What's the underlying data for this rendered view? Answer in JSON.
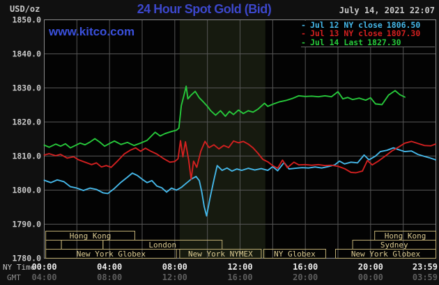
{
  "header": {
    "units_label": "USD/oz",
    "title": "24 Hour Spot Gold (Bid)",
    "datetime": "July 14, 2021 22:07",
    "watermark": "www.kitco.com"
  },
  "colors": {
    "frame_bg": "#101010",
    "plot_bg": "#030303",
    "band": "#161a0f",
    "grid": "#565656",
    "border": "#8c8c8c",
    "session_border": "#bfae74",
    "session_text": "#ddcc92",
    "title": "#3c47cb",
    "watermark": "#3a50dc",
    "datetime": "#c8c8c8",
    "y_tick_text": "#c8c8c8",
    "ny_tick_text": "#ededed",
    "gmt_tick_text": "#5e5e5e",
    "series_jul12": "#45b7e8",
    "series_jul13": "#d22020",
    "series_jul14": "#27c93b"
  },
  "legend": {
    "items": [
      {
        "marker": "-",
        "label": "Jul 12 NY close",
        "value": "1806.50",
        "color": "#45b7e8"
      },
      {
        "marker": "-",
        "label": "Jul 13 NY close",
        "value": "1807.30",
        "color": "#d22020"
      },
      {
        "marker": "-",
        "label": "Jul 14 Last",
        "value": "1827.30",
        "color": "#27c93b"
      }
    ]
  },
  "axes": {
    "ny_label": "NY Time",
    "gmt_label": "GMT",
    "y_ticks": [
      {
        "value": 1850,
        "label": "1850.0"
      },
      {
        "value": 1840,
        "label": "1840.0"
      },
      {
        "value": 1830,
        "label": "1830.0"
      },
      {
        "value": 1820,
        "label": "1820.0"
      },
      {
        "value": 1810,
        "label": "1810.0"
      },
      {
        "value": 1800,
        "label": "1800.0"
      },
      {
        "value": 1790,
        "label": "1790.0"
      },
      {
        "value": 1780,
        "label": "1780.0"
      }
    ],
    "x_ticks": [
      {
        "hour": 0,
        "ny": "00:00",
        "gmt": "04:00",
        "anchor": "middle"
      },
      {
        "hour": 4,
        "ny": "04:00",
        "gmt": "08:00",
        "anchor": "middle"
      },
      {
        "hour": 8,
        "ny": "08:00",
        "gmt": "12:00",
        "anchor": "middle"
      },
      {
        "hour": 12,
        "ny": "12:00",
        "gmt": "16:00",
        "anchor": "middle"
      },
      {
        "hour": 16,
        "ny": "16:00",
        "gmt": "20:00",
        "anchor": "middle"
      },
      {
        "hour": 20,
        "ny": "20:00",
        "gmt": "00:00",
        "anchor": "middle"
      },
      {
        "hour": 23.983,
        "ny": "23:59",
        "gmt": "03:59",
        "anchor": "end"
      }
    ],
    "grid": {
      "v_step_hours": 2,
      "h_step": 10
    }
  },
  "plot": {
    "highlight_band": {
      "start_hour": 8.3,
      "end_hour": 13.55
    }
  },
  "sessions": [
    {
      "row": 1,
      "label": "Hong Kong",
      "start": 0.09,
      "end": 5.55
    },
    {
      "row": 1,
      "label": "Hong Kong",
      "start": 20.25,
      "end": 24
    },
    {
      "row": 2,
      "label": "",
      "start": 0.09,
      "end": 1.05
    },
    {
      "row": 2,
      "label": "",
      "start": 1.05,
      "end": 3.6
    },
    {
      "row": 2,
      "label": "London",
      "start": 3.6,
      "end": 10.9
    },
    {
      "row": 2,
      "label": "Sydney",
      "start": 18.9,
      "end": 24
    },
    {
      "row": 3,
      "label": "New York Globex",
      "start": 0.09,
      "end": 8.1
    },
    {
      "row": 3,
      "label": "New York NYMEX",
      "start": 8.3,
      "end": 13.3
    },
    {
      "row": 3,
      "label": "NY Globex",
      "start": 13.45,
      "end": 17.25
    },
    {
      "row": 3,
      "label": "New York Globex",
      "start": 17.85,
      "end": 24
    }
  ],
  "chart_data": {
    "type": "line",
    "title": "24 Hour Spot Gold (Bid)",
    "xlabel": "NY Time",
    "ylabel": "USD/oz",
    "x_range_hours": [
      0,
      24
    ],
    "ylim": [
      1780,
      1850
    ],
    "grid": true,
    "legend_position": "top-right",
    "series": [
      {
        "name": "Jul 12 NY close 1806.50",
        "color": "#45b7e8",
        "points": [
          [
            0,
            1802.9
          ],
          [
            0.4,
            1802.2
          ],
          [
            0.8,
            1803.0
          ],
          [
            1.2,
            1802.5
          ],
          [
            1.6,
            1801.0
          ],
          [
            2.0,
            1800.6
          ],
          [
            2.4,
            1799.9
          ],
          [
            2.8,
            1800.6
          ],
          [
            3.2,
            1800.2
          ],
          [
            3.6,
            1799.2
          ],
          [
            3.9,
            1799.0
          ],
          [
            4.3,
            1800.5
          ],
          [
            4.7,
            1802.3
          ],
          [
            5.1,
            1803.8
          ],
          [
            5.4,
            1805.0
          ],
          [
            5.7,
            1804.3
          ],
          [
            6.0,
            1803.2
          ],
          [
            6.3,
            1802.2
          ],
          [
            6.6,
            1802.8
          ],
          [
            6.9,
            1801.2
          ],
          [
            7.2,
            1800.7
          ],
          [
            7.5,
            1799.4
          ],
          [
            7.8,
            1800.6
          ],
          [
            8.1,
            1800.0
          ],
          [
            8.4,
            1800.8
          ],
          [
            8.7,
            1802.0
          ],
          [
            9.0,
            1803.2
          ],
          [
            9.3,
            1804.0
          ],
          [
            9.5,
            1802.8
          ],
          [
            9.65,
            1799.5
          ],
          [
            9.8,
            1795.2
          ],
          [
            9.95,
            1792.4
          ],
          [
            10.15,
            1797.5
          ],
          [
            10.4,
            1803.0
          ],
          [
            10.6,
            1807.2
          ],
          [
            10.9,
            1805.8
          ],
          [
            11.2,
            1806.5
          ],
          [
            11.5,
            1805.6
          ],
          [
            11.8,
            1806.2
          ],
          [
            12.1,
            1805.8
          ],
          [
            12.5,
            1806.4
          ],
          [
            12.9,
            1805.9
          ],
          [
            13.3,
            1806.3
          ],
          [
            13.7,
            1805.8
          ],
          [
            14.0,
            1806.9
          ],
          [
            14.3,
            1805.7
          ],
          [
            14.7,
            1808.1
          ],
          [
            15.0,
            1806.2
          ],
          [
            15.4,
            1806.4
          ],
          [
            15.8,
            1806.6
          ],
          [
            16.2,
            1806.5
          ],
          [
            16.6,
            1806.8
          ],
          [
            17.0,
            1806.5
          ],
          [
            17.4,
            1806.9
          ],
          [
            17.8,
            1807.4
          ],
          [
            18.1,
            1808.5
          ],
          [
            18.4,
            1807.7
          ],
          [
            18.8,
            1808.2
          ],
          [
            19.2,
            1808.0
          ],
          [
            19.6,
            1810.3
          ],
          [
            19.9,
            1808.9
          ],
          [
            20.3,
            1810.0
          ],
          [
            20.6,
            1811.3
          ],
          [
            21.0,
            1811.7
          ],
          [
            21.4,
            1812.4
          ],
          [
            21.7,
            1811.9
          ],
          [
            22.1,
            1811.3
          ],
          [
            22.5,
            1811.5
          ],
          [
            22.9,
            1810.5
          ],
          [
            23.3,
            1809.9
          ],
          [
            23.6,
            1809.5
          ],
          [
            23.98,
            1808.9
          ]
        ]
      },
      {
        "name": "Jul 13 NY close 1807.30",
        "color": "#d22020",
        "points": [
          [
            0,
            1810.3
          ],
          [
            0.3,
            1810.7
          ],
          [
            0.7,
            1810.1
          ],
          [
            1.0,
            1810.5
          ],
          [
            1.4,
            1809.4
          ],
          [
            1.8,
            1809.8
          ],
          [
            2.1,
            1808.9
          ],
          [
            2.5,
            1808.2
          ],
          [
            2.9,
            1807.5
          ],
          [
            3.2,
            1808.0
          ],
          [
            3.5,
            1806.8
          ],
          [
            3.8,
            1807.2
          ],
          [
            4.1,
            1806.7
          ],
          [
            4.5,
            1808.6
          ],
          [
            4.9,
            1810.6
          ],
          [
            5.3,
            1811.8
          ],
          [
            5.6,
            1812.4
          ],
          [
            5.9,
            1811.4
          ],
          [
            6.2,
            1812.3
          ],
          [
            6.5,
            1811.5
          ],
          [
            6.9,
            1810.6
          ],
          [
            7.3,
            1809.3
          ],
          [
            7.7,
            1808.2
          ],
          [
            8.0,
            1808.4
          ],
          [
            8.2,
            1809.2
          ],
          [
            8.35,
            1814.5
          ],
          [
            8.5,
            1809.8
          ],
          [
            8.65,
            1814.2
          ],
          [
            8.85,
            1808.9
          ],
          [
            9.0,
            1803.2
          ],
          [
            9.15,
            1808.5
          ],
          [
            9.35,
            1806.7
          ],
          [
            9.6,
            1811.5
          ],
          [
            9.85,
            1814.3
          ],
          [
            10.1,
            1812.5
          ],
          [
            10.4,
            1813.3
          ],
          [
            10.7,
            1812.1
          ],
          [
            11.0,
            1813.1
          ],
          [
            11.3,
            1812.5
          ],
          [
            11.6,
            1814.4
          ],
          [
            11.9,
            1813.9
          ],
          [
            12.2,
            1814.3
          ],
          [
            12.5,
            1813.5
          ],
          [
            12.8,
            1812.4
          ],
          [
            13.1,
            1810.8
          ],
          [
            13.4,
            1809.0
          ],
          [
            13.7,
            1808.3
          ],
          [
            14.0,
            1807.2
          ],
          [
            14.3,
            1806.4
          ],
          [
            14.6,
            1808.8
          ],
          [
            14.9,
            1806.6
          ],
          [
            15.3,
            1808.2
          ],
          [
            15.6,
            1807.4
          ],
          [
            16.0,
            1807.5
          ],
          [
            16.4,
            1807.3
          ],
          [
            16.8,
            1807.5
          ],
          [
            17.2,
            1807.2
          ],
          [
            17.6,
            1807.3
          ],
          [
            18.0,
            1807.0
          ],
          [
            18.4,
            1806.3
          ],
          [
            18.8,
            1805.2
          ],
          [
            19.1,
            1805.1
          ],
          [
            19.5,
            1805.6
          ],
          [
            19.8,
            1808.7
          ],
          [
            20.1,
            1807.4
          ],
          [
            20.5,
            1808.6
          ],
          [
            20.9,
            1810.0
          ],
          [
            21.3,
            1811.5
          ],
          [
            21.7,
            1812.6
          ],
          [
            22.1,
            1813.8
          ],
          [
            22.5,
            1814.3
          ],
          [
            22.9,
            1813.7
          ],
          [
            23.3,
            1813.1
          ],
          [
            23.7,
            1813.0
          ],
          [
            23.98,
            1813.5
          ]
        ]
      },
      {
        "name": "Jul 14 Last 1827.30",
        "color": "#27c93b",
        "points": [
          [
            0,
            1813.2
          ],
          [
            0.3,
            1812.6
          ],
          [
            0.7,
            1813.5
          ],
          [
            1.0,
            1812.9
          ],
          [
            1.3,
            1813.6
          ],
          [
            1.6,
            1812.4
          ],
          [
            1.9,
            1813.1
          ],
          [
            2.2,
            1813.8
          ],
          [
            2.5,
            1813.3
          ],
          [
            2.8,
            1814.1
          ],
          [
            3.1,
            1815.1
          ],
          [
            3.4,
            1814.1
          ],
          [
            3.7,
            1812.9
          ],
          [
            4.0,
            1813.7
          ],
          [
            4.3,
            1814.4
          ],
          [
            4.7,
            1813.4
          ],
          [
            5.1,
            1814.0
          ],
          [
            5.5,
            1813.1
          ],
          [
            5.9,
            1813.8
          ],
          [
            6.3,
            1814.6
          ],
          [
            6.8,
            1817.0
          ],
          [
            7.1,
            1815.9
          ],
          [
            7.4,
            1816.6
          ],
          [
            7.8,
            1817.2
          ],
          [
            8.1,
            1817.6
          ],
          [
            8.25,
            1818.2
          ],
          [
            8.4,
            1824.8
          ],
          [
            8.55,
            1827.6
          ],
          [
            8.7,
            1830.5
          ],
          [
            8.8,
            1826.8
          ],
          [
            9.0,
            1827.9
          ],
          [
            9.25,
            1829.0
          ],
          [
            9.5,
            1827.1
          ],
          [
            9.75,
            1825.9
          ],
          [
            10.0,
            1824.6
          ],
          [
            10.2,
            1823.3
          ],
          [
            10.5,
            1822.0
          ],
          [
            10.8,
            1823.3
          ],
          [
            11.1,
            1821.7
          ],
          [
            11.35,
            1823.1
          ],
          [
            11.6,
            1822.2
          ],
          [
            11.9,
            1823.5
          ],
          [
            12.2,
            1822.5
          ],
          [
            12.5,
            1823.3
          ],
          [
            12.8,
            1822.9
          ],
          [
            13.1,
            1823.8
          ],
          [
            13.5,
            1825.5
          ],
          [
            13.7,
            1824.6
          ],
          [
            14.0,
            1825.2
          ],
          [
            14.4,
            1825.9
          ],
          [
            14.8,
            1826.3
          ],
          [
            15.2,
            1826.9
          ],
          [
            15.6,
            1827.7
          ],
          [
            16.0,
            1827.5
          ],
          [
            16.4,
            1827.6
          ],
          [
            16.8,
            1827.4
          ],
          [
            17.2,
            1827.7
          ],
          [
            17.6,
            1827.4
          ],
          [
            18.0,
            1828.9
          ],
          [
            18.3,
            1826.8
          ],
          [
            18.6,
            1827.2
          ],
          [
            18.9,
            1826.6
          ],
          [
            19.3,
            1827.0
          ],
          [
            19.7,
            1826.4
          ],
          [
            20.0,
            1827.1
          ],
          [
            20.3,
            1825.3
          ],
          [
            20.7,
            1825.1
          ],
          [
            21.1,
            1827.9
          ],
          [
            21.5,
            1829.2
          ],
          [
            21.8,
            1828.0
          ],
          [
            22.1,
            1827.3
          ]
        ]
      }
    ]
  }
}
